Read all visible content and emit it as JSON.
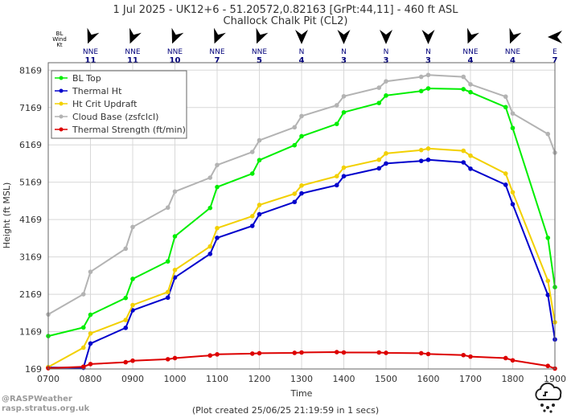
{
  "title_line1": "1 Jul 2025 - UK12+6 - 51.20572,0.82163 [GrPt:44,11]  - 460 ft ASL",
  "title_line2": "Challock Chalk Pit (CL2)",
  "xlabel": "Time",
  "ylabel": "Height (ft MSL)",
  "footer": "(Plot created 25/06/25 21:19:59 in 1 secs)",
  "branding": {
    "line1": "@RASPWeather",
    "line2": "rasp.stratus.org.uk"
  },
  "wind_header": {
    "line1": "BL",
    "line2": "Wind",
    "line3": "Kt"
  },
  "wind": [
    {
      "time": 800,
      "dir": "NNE",
      "speed": "11",
      "deg": 22.5
    },
    {
      "time": 900,
      "dir": "NNE",
      "speed": "11",
      "deg": 22.5
    },
    {
      "time": 1000,
      "dir": "NNE",
      "speed": "10",
      "deg": 22.5
    },
    {
      "time": 1100,
      "dir": "NNE",
      "speed": "7",
      "deg": 22.5
    },
    {
      "time": 1200,
      "dir": "NNE",
      "speed": "5",
      "deg": 22.5
    },
    {
      "time": 1300,
      "dir": "N",
      "speed": "4",
      "deg": 0
    },
    {
      "time": 1400,
      "dir": "N",
      "speed": "3",
      "deg": 0
    },
    {
      "time": 1500,
      "dir": "N",
      "speed": "3",
      "deg": 0
    },
    {
      "time": 1600,
      "dir": "N",
      "speed": "3",
      "deg": 0
    },
    {
      "time": 1700,
      "dir": "NNE",
      "speed": "4",
      "deg": 22.5
    },
    {
      "time": 1800,
      "dir": "NNE",
      "speed": "4",
      "deg": 22.5
    },
    {
      "time": 1900,
      "dir": "E",
      "speed": "7",
      "deg": 90
    }
  ],
  "colors": {
    "bl_top": "#00ee00",
    "thermal_ht": "#0000cc",
    "ht_crit": "#f2d000",
    "cloud_base": "#b3b3b3",
    "thermal_strength": "#dd0000",
    "grid": "#d8d8d8"
  },
  "chart_data": {
    "type": "line",
    "xlabel": "Time",
    "ylabel": "Height (ft MSL)",
    "xlim": [
      700,
      1900
    ],
    "ylim": [
      169,
      8369
    ],
    "grid": true,
    "legend_position": "top-left",
    "x_ticks": [
      "0700",
      "0800",
      "0900",
      "1000",
      "1100",
      "1200",
      "1300",
      "1400",
      "1500",
      "1600",
      "1700",
      "1800",
      "1900"
    ],
    "y_ticks": [
      "169",
      "1169",
      "2169",
      "3169",
      "4169",
      "5169",
      "6169",
      "7169",
      "8169"
    ],
    "x": [
      700,
      750,
      800,
      850,
      900,
      950,
      1000,
      1050,
      1100,
      1150,
      1200,
      1250,
      1300,
      1350,
      1400,
      1450,
      1500,
      1550,
      1600,
      1650,
      1700,
      1750,
      1800,
      1850,
      1900
    ],
    "series": [
      {
        "name": "BL Top",
        "color": "#00ee00",
        "values": [
          1050,
          1280,
          1620,
          2070,
          2580,
          3050,
          3720,
          4480,
          5040,
          5400,
          5760,
          6160,
          6400,
          6730,
          7040,
          7290,
          7490,
          7610,
          7680,
          7660,
          7580,
          7180,
          6620,
          3680,
          2360
        ]
      },
      {
        "name": "Thermal Ht",
        "color": "#0000cc",
        "values": [
          210,
          200,
          850,
          1270,
          1740,
          2080,
          2620,
          3250,
          3680,
          4000,
          4310,
          4640,
          4870,
          5090,
          5330,
          5540,
          5670,
          5740,
          5770,
          5700,
          5530,
          5100,
          4580,
          2150,
          960
        ]
      },
      {
        "name": "Ht Crit Updraft",
        "color": "#f2d000",
        "values": [
          220,
          740,
          1120,
          1480,
          1880,
          2230,
          2820,
          3450,
          3940,
          4260,
          4560,
          4860,
          5080,
          5330,
          5560,
          5770,
          5940,
          6030,
          6070,
          6010,
          5880,
          5400,
          4900,
          2530,
          1420
        ]
      },
      {
        "name": "Cloud Base (zsfclcl)",
        "color": "#b3b3b3",
        "values": [
          1630,
          2170,
          2770,
          3390,
          3970,
          4490,
          4920,
          5290,
          5630,
          5980,
          6290,
          6640,
          6940,
          7230,
          7470,
          7700,
          7870,
          7990,
          8040,
          7990,
          7790,
          7460,
          7010,
          6460,
          5960
        ]
      },
      {
        "name": "Thermal Strength (ft/min)",
        "color": "#dd0000",
        "values": [
          190,
          230,
          300,
          350,
          390,
          430,
          460,
          530,
          560,
          580,
          590,
          600,
          610,
          620,
          610,
          610,
          600,
          590,
          570,
          540,
          500,
          460,
          400,
          250,
          180
        ]
      }
    ]
  }
}
